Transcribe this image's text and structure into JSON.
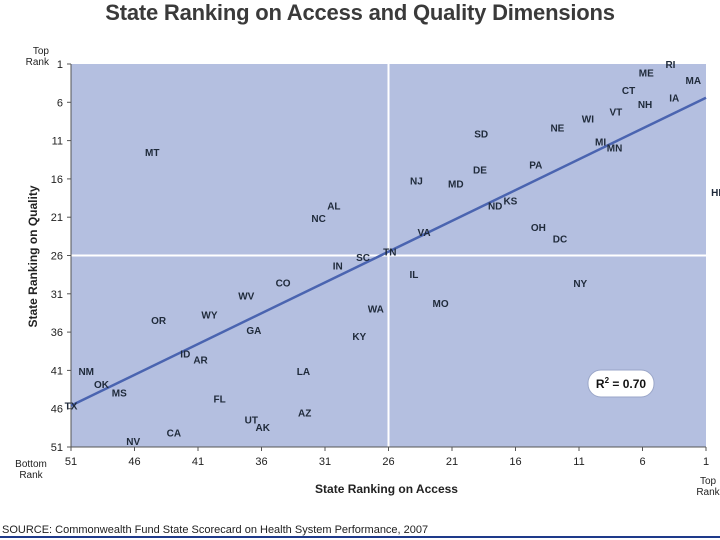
{
  "page": {
    "title": "State Ranking on Access and Quality Dimensions",
    "source": "SOURCE: Commonwealth Fund State Scorecard on Health System Performance, 2007"
  },
  "chart_data": {
    "type": "scatter",
    "title": "State Ranking on Access and Quality Dimensions",
    "xlabel": "State Ranking on Access",
    "ylabel": "State Ranking on Quality",
    "xlim": [
      51,
      1
    ],
    "ylim": [
      51,
      1
    ],
    "x_ticks": [
      51,
      46,
      41,
      36,
      31,
      26,
      21,
      16,
      11,
      6,
      1
    ],
    "y_ticks": [
      1,
      6,
      11,
      16,
      21,
      26,
      31,
      36,
      41,
      46,
      51
    ],
    "x_end_labels": {
      "low": [
        "Bottom",
        "Rank"
      ],
      "high": [
        "Top",
        "Rank"
      ]
    },
    "y_end_labels": {
      "top": [
        "Top",
        "Rank"
      ]
    },
    "annotation": {
      "text_main": "R",
      "text_sup": "2",
      "text_rest": " = 0.70"
    },
    "trend_line": {
      "x": [
        51,
        1
      ],
      "y": [
        45.6,
        5.4
      ]
    },
    "reference_lines": {
      "x": 26,
      "y": 26
    },
    "colors": {
      "plot_bg": "#b4bfe0",
      "trend": "#4a64b0",
      "label": "#1f2a3a",
      "divider": "#ffffff"
    },
    "points": [
      {
        "label": "RI",
        "x": 3.8,
        "y": 1.0
      },
      {
        "label": "ME",
        "x": 5.7,
        "y": 2.1
      },
      {
        "label": "MA",
        "x": 2.0,
        "y": 3.1
      },
      {
        "label": "CT",
        "x": 7.1,
        "y": 4.4
      },
      {
        "label": "IA",
        "x": 3.5,
        "y": 5.4
      },
      {
        "label": "NH",
        "x": 5.8,
        "y": 6.2
      },
      {
        "label": "VT",
        "x": 8.1,
        "y": 7.2
      },
      {
        "label": "WI",
        "x": 10.3,
        "y": 8.1
      },
      {
        "label": "NE",
        "x": 12.7,
        "y": 9.3
      },
      {
        "label": "SD",
        "x": 18.7,
        "y": 10.1
      },
      {
        "label": "MI",
        "x": 9.3,
        "y": 11.1
      },
      {
        "label": "MN",
        "x": 8.2,
        "y": 11.9
      },
      {
        "label": "MT",
        "x": 44.6,
        "y": 12.5
      },
      {
        "label": "PA",
        "x": 14.4,
        "y": 14.1
      },
      {
        "label": "DE",
        "x": 18.8,
        "y": 14.8
      },
      {
        "label": "NJ",
        "x": 23.8,
        "y": 16.2
      },
      {
        "label": "MD",
        "x": 20.7,
        "y": 16.6
      },
      {
        "label": "HI",
        "x": 0.2,
        "y": 17.7
      },
      {
        "label": "KS",
        "x": 16.4,
        "y": 18.8
      },
      {
        "label": "ND",
        "x": 17.6,
        "y": 19.5
      },
      {
        "label": "AL",
        "x": 30.3,
        "y": 19.5
      },
      {
        "label": "NC",
        "x": 31.5,
        "y": 21.1
      },
      {
        "label": "OH",
        "x": 14.2,
        "y": 22.3
      },
      {
        "label": "VA",
        "x": 23.2,
        "y": 22.9
      },
      {
        "label": "DC",
        "x": 12.5,
        "y": 23.8
      },
      {
        "label": "TN",
        "x": 25.9,
        "y": 25.5
      },
      {
        "label": "SC",
        "x": 28.0,
        "y": 26.2
      },
      {
        "label": "IN",
        "x": 30.0,
        "y": 27.3
      },
      {
        "label": "IL",
        "x": 24.0,
        "y": 28.4
      },
      {
        "label": "CO",
        "x": 34.3,
        "y": 29.5
      },
      {
        "label": "NY",
        "x": 10.9,
        "y": 29.6
      },
      {
        "label": "WV",
        "x": 37.2,
        "y": 31.2
      },
      {
        "label": "MO",
        "x": 21.9,
        "y": 32.2
      },
      {
        "label": "WA",
        "x": 27.0,
        "y": 32.9
      },
      {
        "label": "WY",
        "x": 40.1,
        "y": 33.7
      },
      {
        "label": "OR",
        "x": 44.1,
        "y": 34.4
      },
      {
        "label": "GA",
        "x": 36.6,
        "y": 35.7
      },
      {
        "label": "KY",
        "x": 28.3,
        "y": 36.5
      },
      {
        "label": "ID",
        "x": 42.0,
        "y": 38.8
      },
      {
        "label": "AR",
        "x": 40.8,
        "y": 39.6
      },
      {
        "label": "NM",
        "x": 49.8,
        "y": 41.1
      },
      {
        "label": "LA",
        "x": 32.7,
        "y": 41.1
      },
      {
        "label": "OK",
        "x": 48.6,
        "y": 42.8
      },
      {
        "label": "MS",
        "x": 47.2,
        "y": 43.9
      },
      {
        "label": "FL",
        "x": 39.3,
        "y": 44.7
      },
      {
        "label": "TX",
        "x": 51.0,
        "y": 45.6
      },
      {
        "label": "AZ",
        "x": 32.6,
        "y": 46.5
      },
      {
        "label": "UT",
        "x": 36.8,
        "y": 47.4
      },
      {
        "label": "AK",
        "x": 35.9,
        "y": 48.4
      },
      {
        "label": "CA",
        "x": 42.9,
        "y": 49.1
      },
      {
        "label": "NV",
        "x": 46.1,
        "y": 50.2
      }
    ]
  }
}
